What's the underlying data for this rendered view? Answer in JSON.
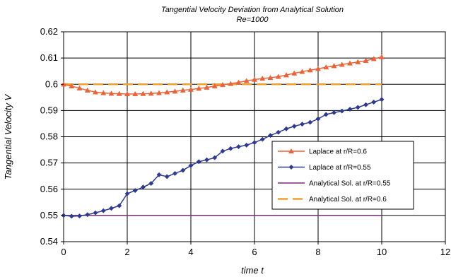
{
  "chart_data": {
    "type": "line",
    "title": "Tangential Velocity Deviation from Analytical Solution",
    "subtitle": "Re=1000",
    "xlabel": "time t",
    "ylabel": "Tangential Velocity V",
    "xlim": [
      0,
      12
    ],
    "ylim": [
      0.54,
      0.62
    ],
    "xticks": [
      "0",
      "2",
      "4",
      "6",
      "8",
      "10",
      "12"
    ],
    "yticks": [
      "0.54",
      "0.55",
      "0.56",
      "0.57",
      "0.58",
      "0.59",
      "0.6",
      "0.61",
      "0.62"
    ],
    "grid": true,
    "legend_position": "right",
    "series": [
      {
        "name": "Laplace at r/R=0.6",
        "color": "#E8643A",
        "marker": "triangle",
        "dashed": false,
        "x": [
          0,
          0.25,
          0.5,
          0.75,
          1.0,
          1.25,
          1.5,
          1.75,
          2.0,
          2.25,
          2.5,
          2.75,
          3.0,
          3.25,
          3.5,
          3.75,
          4.0,
          4.25,
          4.5,
          4.75,
          5.0,
          5.25,
          5.5,
          5.75,
          6.0,
          6.25,
          6.5,
          6.75,
          7.0,
          7.25,
          7.5,
          7.75,
          8.0,
          8.25,
          8.5,
          8.75,
          9.0,
          9.25,
          9.5,
          9.75,
          10.0
        ],
        "y": [
          0.6,
          0.5993,
          0.5985,
          0.5977,
          0.597,
          0.5967,
          0.5965,
          0.5964,
          0.5963,
          0.5963,
          0.5964,
          0.5965,
          0.5967,
          0.597,
          0.5973,
          0.5977,
          0.598,
          0.5984,
          0.5988,
          0.5993,
          0.5998,
          0.6002,
          0.6007,
          0.6013,
          0.6018,
          0.6022,
          0.6025,
          0.6029,
          0.6035,
          0.6042,
          0.6048,
          0.6054,
          0.6059,
          0.6065,
          0.607,
          0.6075,
          0.608,
          0.6085,
          0.609,
          0.6097,
          0.6104
        ]
      },
      {
        "name": "Laplace at r/R=0.55",
        "color": "#2E3A8C",
        "marker": "diamond",
        "dashed": false,
        "x": [
          0,
          0.25,
          0.5,
          0.75,
          1.0,
          1.25,
          1.5,
          1.75,
          2.0,
          2.25,
          2.5,
          2.75,
          3.0,
          3.25,
          3.5,
          3.75,
          4.0,
          4.25,
          4.5,
          4.75,
          5.0,
          5.25,
          5.5,
          5.75,
          6.0,
          6.25,
          6.5,
          6.75,
          7.0,
          7.25,
          7.5,
          7.75,
          8.0,
          8.25,
          8.5,
          8.75,
          9.0,
          9.25,
          9.5,
          9.75,
          10.0
        ],
        "y": [
          0.55,
          0.5497,
          0.5498,
          0.5503,
          0.551,
          0.5518,
          0.5527,
          0.5537,
          0.5583,
          0.5595,
          0.5608,
          0.5622,
          0.5655,
          0.5648,
          0.566,
          0.5672,
          0.569,
          0.5705,
          0.5712,
          0.572,
          0.5745,
          0.5755,
          0.5762,
          0.5768,
          0.5778,
          0.579,
          0.5805,
          0.5817,
          0.583,
          0.584,
          0.5848,
          0.5855,
          0.5868,
          0.5885,
          0.5892,
          0.5898,
          0.5905,
          0.5912,
          0.5922,
          0.5932,
          0.5942
        ]
      },
      {
        "name": "Analytical Sol. at r/R=0.55",
        "color": "#7B2D7B",
        "marker": "none",
        "dashed": false,
        "x": [
          0,
          10
        ],
        "y": [
          0.55,
          0.55
        ]
      },
      {
        "name": "Analytical Sol. at r/R=0.6",
        "color": "#F0A030",
        "marker": "none",
        "dashed": true,
        "x": [
          0,
          10
        ],
        "y": [
          0.6,
          0.6
        ]
      }
    ]
  }
}
